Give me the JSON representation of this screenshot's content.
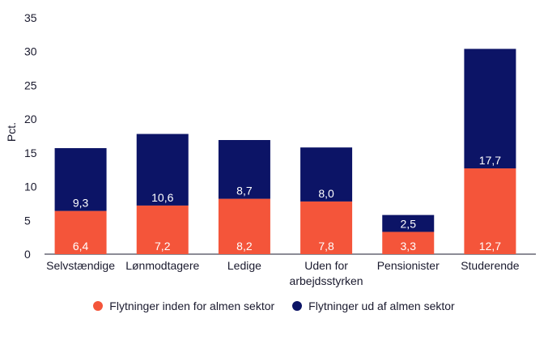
{
  "chart_data": {
    "type": "bar",
    "stacked": true,
    "ylabel": "Pct.",
    "xlabel": "",
    "ylim": [
      0,
      35
    ],
    "yticks": [
      0,
      5,
      10,
      15,
      20,
      25,
      30,
      35
    ],
    "ytick_labels": [
      "0",
      "5",
      "10",
      "15",
      "20",
      "25",
      "30",
      "35"
    ],
    "grid": false,
    "legend_position": "bottom",
    "categories": [
      [
        "Selvstændige"
      ],
      [
        "Lønmodtagere"
      ],
      [
        "Ledige"
      ],
      [
        "Uden for",
        "arbejdsstyrken"
      ],
      [
        "Pensionister"
      ],
      [
        "Studerende"
      ]
    ],
    "series": [
      {
        "name": "Flytninger inden for almen sektor",
        "color": "#f4553a",
        "values": [
          6.4,
          7.2,
          8.2,
          7.8,
          3.3,
          12.7
        ],
        "labels": [
          "6,4",
          "7,2",
          "8,2",
          "7,8",
          "3,3",
          "12,7"
        ]
      },
      {
        "name": "Flytninger ud af almen sektor",
        "color": "#0c1466",
        "values": [
          9.3,
          10.6,
          8.7,
          8.0,
          2.5,
          17.7
        ],
        "labels": [
          "9,3",
          "10,6",
          "8,7",
          "8,0",
          "2,5",
          "17,7"
        ]
      }
    ]
  }
}
